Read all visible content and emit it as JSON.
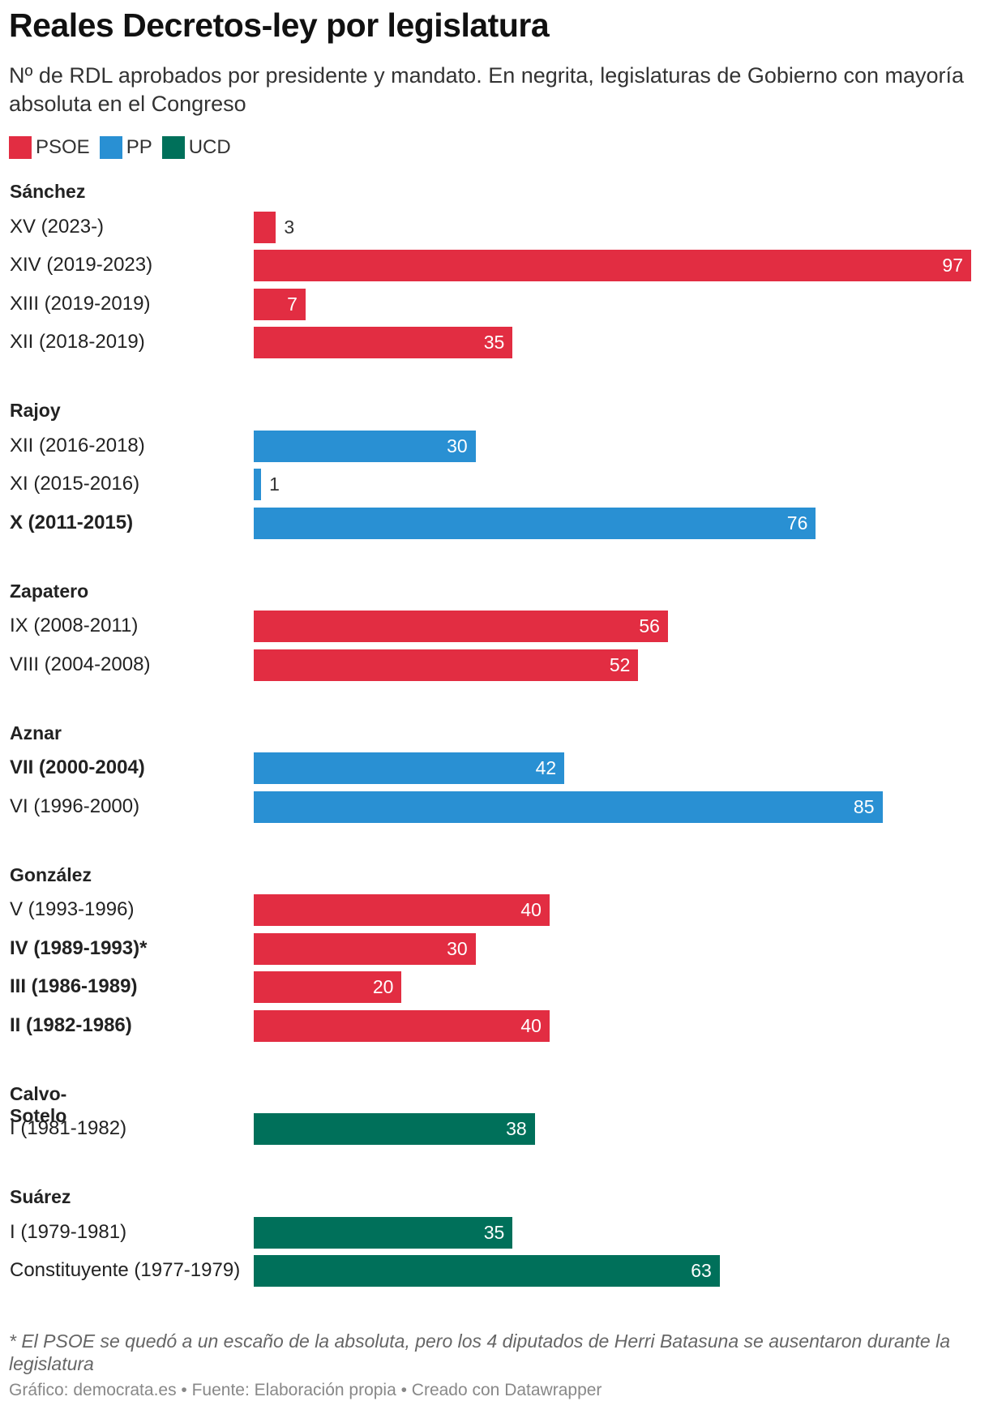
{
  "header": {
    "title": "Reales Decretos-ley por legislatura",
    "subtitle": "Nº de RDL aprobados por presidente y mandato. En negrita, legislaturas de Gobierno con mayoría absoluta en el Congreso"
  },
  "legend": {
    "items": [
      {
        "label": "PSOE",
        "color": "#e22d42"
      },
      {
        "label": "PP",
        "color": "#2990d3"
      },
      {
        "label": "UCD",
        "color": "#00705a"
      }
    ]
  },
  "chart_data": {
    "type": "bar",
    "orientation": "horizontal",
    "xlim": [
      0,
      97
    ],
    "party_colors": {
      "PSOE": "#e22d42",
      "PP": "#2990d3",
      "UCD": "#00705a"
    },
    "groups": [
      {
        "name": "Sánchez",
        "party": "PSOE",
        "rows": [
          {
            "label": "XV (2023-)",
            "value": 3,
            "bold": false
          },
          {
            "label": "XIV (2019-2023)",
            "value": 97,
            "bold": false
          },
          {
            "label": "XIII (2019-2019)",
            "value": 7,
            "bold": false
          },
          {
            "label": "XII (2018-2019)",
            "value": 35,
            "bold": false
          }
        ]
      },
      {
        "name": "Rajoy",
        "party": "PP",
        "rows": [
          {
            "label": "XII (2016-2018)",
            "value": 30,
            "bold": false
          },
          {
            "label": "XI (2015-2016)",
            "value": 1,
            "bold": false
          },
          {
            "label": "X (2011-2015)",
            "value": 76,
            "bold": true
          }
        ]
      },
      {
        "name": "Zapatero",
        "party": "PSOE",
        "rows": [
          {
            "label": "IX (2008-2011)",
            "value": 56,
            "bold": false
          },
          {
            "label": "VIII (2004-2008)",
            "value": 52,
            "bold": false
          }
        ]
      },
      {
        "name": "Aznar",
        "party": "PP",
        "rows": [
          {
            "label": "VII (2000-2004)",
            "value": 42,
            "bold": true
          },
          {
            "label": "VI (1996-2000)",
            "value": 85,
            "bold": false
          }
        ]
      },
      {
        "name": "González",
        "party": "PSOE",
        "rows": [
          {
            "label": "V (1993-1996)",
            "value": 40,
            "bold": false
          },
          {
            "label": "IV (1989-1993)*",
            "value": 30,
            "bold": true
          },
          {
            "label": "III (1986-1989)",
            "value": 20,
            "bold": true
          },
          {
            "label": "II (1982-1986)",
            "value": 40,
            "bold": true
          }
        ]
      },
      {
        "name": "Calvo-Sotelo",
        "party": "UCD",
        "rows": [
          {
            "label": "I (1981-1982)",
            "value": 38,
            "bold": false
          }
        ]
      },
      {
        "name": "Suárez",
        "party": "UCD",
        "rows": [
          {
            "label": "I (1979-1981)",
            "value": 35,
            "bold": false
          },
          {
            "label": "Constituyente (1977-1979)",
            "value": 63,
            "bold": false
          }
        ]
      }
    ]
  },
  "footer": {
    "note": "* El PSOE se quedó a un escaño de la absoluta, pero los 4 diputados de Herri Batasuna se ausentaron durante la legislatura",
    "credit": "Gráfico: democrata.es • Fuente: Elaboración propia • Creado con Datawrapper"
  }
}
